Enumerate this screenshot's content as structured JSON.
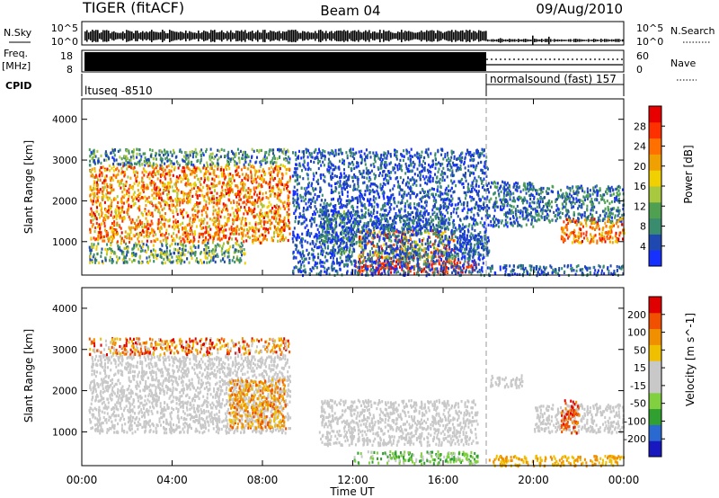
{
  "header": {
    "station": "TIGER (fitACF)",
    "beam": "Beam 04",
    "date": "09/Aug/2010"
  },
  "status_panels": {
    "nsky_label": "N.Sky",
    "nsky_ticks": [
      "10^5",
      "10^0"
    ],
    "nsearch_label": "N.Search",
    "nsearch_ticks": [
      "10^5",
      "10^0"
    ],
    "freq_label": "Freq.",
    "freq_unit": "[MHz]",
    "freq_ticks": [
      "18",
      "8"
    ],
    "nave_label": "Nave",
    "nave_ticks": [
      "60",
      "0"
    ],
    "cpid_label": "CPID",
    "cpid_segments": [
      {
        "name": "ltuseq -8510",
        "start_hour": 0,
        "end_hour": 18
      },
      {
        "name": "normalsound (fast) 157",
        "start_hour": 18,
        "end_hour": 24
      }
    ]
  },
  "chart_data": [
    {
      "type": "heatmap",
      "title": "",
      "parameter_label": "Power [dB]",
      "ylabel": "Slant Range [km]",
      "xlabel": "",
      "xlim": [
        0,
        24
      ],
      "ylim": [
        180,
        4500
      ],
      "x_ticks": [
        "00:00",
        "04:00",
        "08:00",
        "12:00",
        "16:00",
        "20:00",
        "00:00"
      ],
      "y_ticks": [
        1000,
        2000,
        3000,
        4000
      ],
      "colorbar": {
        "ticks": [
          "4",
          "8",
          "12",
          "16",
          "20",
          "24",
          "28"
        ],
        "colors": [
          "#1530ff",
          "#1f48b0",
          "#3a8c6e",
          "#4fa050",
          "#a8c840",
          "#f0d000",
          "#f0a000",
          "#ff7000",
          "#ff3000",
          "#e80000"
        ]
      },
      "regions": [
        {
          "t": [
            0.3,
            9.2
          ],
          "r": [
            1000,
            2900
          ],
          "levels": [
            0.45,
            0.95
          ]
        },
        {
          "t": [
            0.3,
            9.2
          ],
          "r": [
            2900,
            3300
          ],
          "levels": [
            0.05,
            0.5
          ]
        },
        {
          "t": [
            0.3,
            7.2
          ],
          "r": [
            500,
            1000
          ],
          "levels": [
            0.1,
            0.6
          ]
        },
        {
          "t": [
            10.5,
            12.2
          ],
          "r": [
            700,
            1800
          ],
          "levels": [
            0.05,
            0.45
          ]
        },
        {
          "t": [
            12.2,
            16.2
          ],
          "r": [
            1300,
            1700
          ],
          "levels": [
            0.05,
            0.35
          ]
        },
        {
          "t": [
            12.2,
            16.5
          ],
          "r": [
            550,
            1300
          ],
          "levels": [
            0.3,
            0.95
          ]
        },
        {
          "t": [
            12.0,
            17.5
          ],
          "r": [
            250,
            550
          ],
          "levels": [
            0.75,
            1.0
          ]
        },
        {
          "t": [
            16.5,
            18.0
          ],
          "r": [
            700,
            1200
          ],
          "levels": [
            0.05,
            0.3
          ]
        },
        {
          "t": [
            18.0,
            20.0
          ],
          "r": [
            1400,
            2500
          ],
          "levels": [
            0.05,
            0.35
          ]
        },
        {
          "t": [
            20.0,
            24.0
          ],
          "r": [
            1500,
            2400
          ],
          "levels": [
            0.05,
            0.4
          ]
        },
        {
          "t": [
            21.2,
            24.0
          ],
          "r": [
            1000,
            1600
          ],
          "levels": [
            0.5,
            0.95
          ]
        },
        {
          "t": [
            18.0,
            24.0
          ],
          "r": [
            200,
            450
          ],
          "levels": [
            0.05,
            0.3
          ]
        },
        {
          "t": [
            9.3,
            18.0
          ],
          "r": [
            200,
            3300
          ],
          "levels": [
            0.0,
            0.3
          ]
        }
      ]
    },
    {
      "type": "heatmap",
      "title": "",
      "parameter_label": "Velocity [m s^-1]",
      "ylabel": "Slant Range [km]",
      "xlabel": "Time UT",
      "xlim": [
        0,
        24
      ],
      "ylim": [
        180,
        4500
      ],
      "x_ticks": [
        "00:00",
        "04:00",
        "08:00",
        "12:00",
        "16:00",
        "20:00",
        "00:00"
      ],
      "y_ticks": [
        1000,
        2000,
        3000,
        4000
      ],
      "colorbar": {
        "ticks": [
          "200",
          "100",
          "50",
          "15",
          "-15",
          "-50",
          "-100",
          "-200"
        ],
        "colors": [
          "#1818c0",
          "#2a6ad0",
          "#30a030",
          "#80d040",
          "#c8c8c8",
          "#c8c8c8",
          "#f0c000",
          "#f09000",
          "#f05000",
          "#e00000"
        ]
      },
      "regions": [
        {
          "t": [
            0.3,
            9.2
          ],
          "r": [
            1000,
            2900
          ],
          "levels": [
            0.4,
            0.6
          ]
        },
        {
          "t": [
            0.3,
            9.2
          ],
          "r": [
            2900,
            3300
          ],
          "levels": [
            0.5,
            1.0
          ]
        },
        {
          "t": [
            6.5,
            9.0
          ],
          "r": [
            1100,
            2300
          ],
          "levels": [
            0.65,
            0.85
          ]
        },
        {
          "t": [
            10.5,
            17.5
          ],
          "r": [
            700,
            1800
          ],
          "levels": [
            0.45,
            0.55
          ]
        },
        {
          "t": [
            12.0,
            17.5
          ],
          "r": [
            250,
            550
          ],
          "levels": [
            0.25,
            0.45
          ]
        },
        {
          "t": [
            18.0,
            24.0
          ],
          "r": [
            200,
            450
          ],
          "levels": [
            0.6,
            0.8
          ]
        },
        {
          "t": [
            20.0,
            24.0
          ],
          "r": [
            1000,
            1700
          ],
          "levels": [
            0.45,
            0.55
          ]
        },
        {
          "t": [
            21.2,
            22.0
          ],
          "r": [
            1000,
            1800
          ],
          "levels": [
            0.7,
            0.95
          ]
        },
        {
          "t": [
            18.0,
            19.5
          ],
          "r": [
            2100,
            2400
          ],
          "levels": [
            0.45,
            0.55
          ]
        }
      ]
    }
  ]
}
